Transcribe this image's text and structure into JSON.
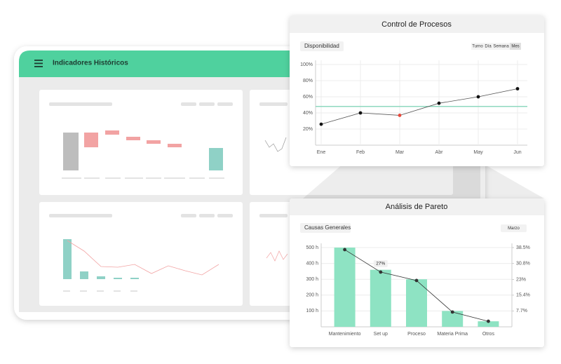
{
  "header": {
    "title": "Indicadores Históricos"
  },
  "control_tabs": [
    "Turno",
    "Día",
    "Semana",
    "Mes"
  ],
  "active_tab": 3,
  "pareto_period": "Marzo",
  "chart_data": [
    {
      "type": "line",
      "title": "Control de Procesos",
      "subtitle": "Disponibilidad",
      "categories": [
        "Ene",
        "Feb",
        "Mar",
        "Abr",
        "May",
        "Jun"
      ],
      "values": [
        26,
        40,
        37,
        52,
        60,
        70
      ],
      "color": "#555555",
      "point_colors": [
        "#111111",
        "#111111",
        "#e8483b",
        "#111111",
        "#111111",
        "#111111"
      ],
      "target": 48,
      "target_color": "#8fd9bf",
      "ylim": [
        0,
        100
      ],
      "yticks": [
        {
          "value": 20,
          "label": "20%"
        },
        {
          "value": 40,
          "label": "40%"
        },
        {
          "value": 60,
          "label": "60%"
        },
        {
          "value": 80,
          "label": "80%"
        },
        {
          "value": 100,
          "label": "100%"
        }
      ],
      "grid": true
    },
    {
      "type": "bar",
      "title": "Análisis de Pareto",
      "subtitle": "Causas Generales",
      "categories": [
        "Mantenimiento",
        "Set up",
        "Proceso",
        "Materia Prima",
        "Otros"
      ],
      "series": [
        {
          "color": "#8ee3c3",
          "values": [
            500,
            360,
            300,
            100,
            35
          ]
        },
        {
          "color": "#333333",
          "axis": "y2",
          "values": [
            37.5,
            26.6,
            22.5,
            7.2,
            2.7
          ],
          "value_labels": [
            null,
            "27%",
            null,
            null,
            null
          ]
        }
      ],
      "ylim": [
        0,
        500
      ],
      "yticks": [
        {
          "value": 100,
          "label": "100 h"
        },
        {
          "value": 200,
          "label": "200 h"
        },
        {
          "value": 300,
          "label": "300 h"
        },
        {
          "value": 400,
          "label": "400 h"
        },
        {
          "value": 500,
          "label": "500 h"
        }
      ],
      "y2lim": [
        0,
        38.5
      ],
      "y2ticks": [
        {
          "value": 7.7,
          "label": "7.7%"
        },
        {
          "value": 15.4,
          "label": "15.4%"
        },
        {
          "value": 23,
          "label": "23%"
        },
        {
          "value": 30.8,
          "label": "30.8%"
        },
        {
          "value": 38.5,
          "label": "38.5%"
        }
      ],
      "grid": true
    }
  ]
}
